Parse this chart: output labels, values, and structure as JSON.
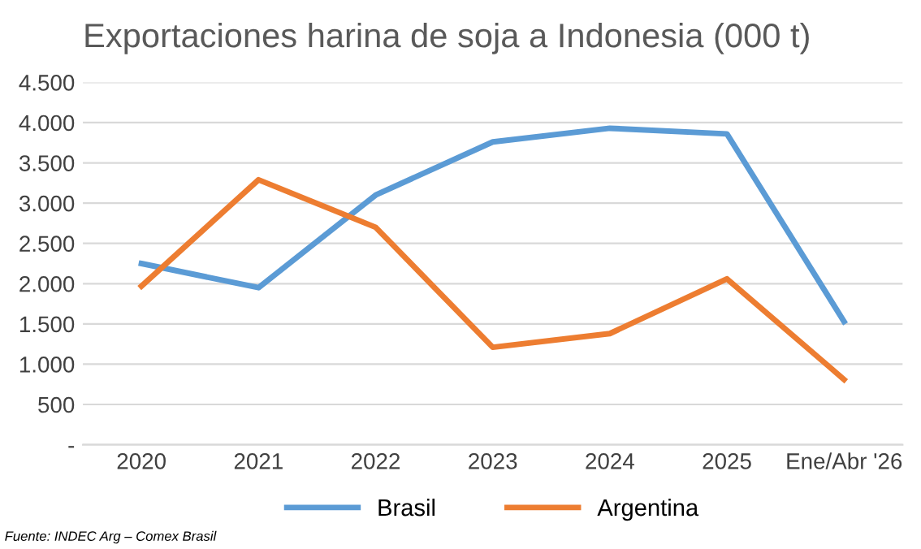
{
  "chart_data": {
    "type": "line",
    "title": "Exportaciones harina de soja a Indonesia (000 t)",
    "categories": [
      "2020",
      "2021",
      "2022",
      "2023",
      "2024",
      "2025",
      "Ene/Abr '26"
    ],
    "series": [
      {
        "name": "Brasil",
        "color": "#5b9bd5",
        "values": [
          2250,
          1950,
          3100,
          3760,
          3930,
          3860,
          1530
        ]
      },
      {
        "name": "Argentina",
        "color": "#ed7d31",
        "values": [
          1970,
          3290,
          2700,
          1210,
          1380,
          2060,
          810
        ]
      }
    ],
    "ylim": [
      0,
      4500
    ],
    "yticks": [
      {
        "value": 0,
        "label": "-"
      },
      500,
      {
        "value": 1000,
        "label": "1.000"
      },
      {
        "value": 1500,
        "label": "1.500"
      },
      {
        "value": 2000,
        "label": "2.000"
      },
      {
        "value": 2500,
        "label": "2.500"
      },
      {
        "value": 3000,
        "label": "3.000"
      },
      {
        "value": 3500,
        "label": "3.500"
      },
      {
        "value": 4000,
        "label": "4.000"
      },
      {
        "value": 4500,
        "label": "4.500"
      }
    ],
    "grid": "y",
    "legend": "bottom",
    "marker": "none",
    "line_style": "solid",
    "annotations": [
      "Fuente: INDEC Arg – Comex Brasil"
    ]
  }
}
